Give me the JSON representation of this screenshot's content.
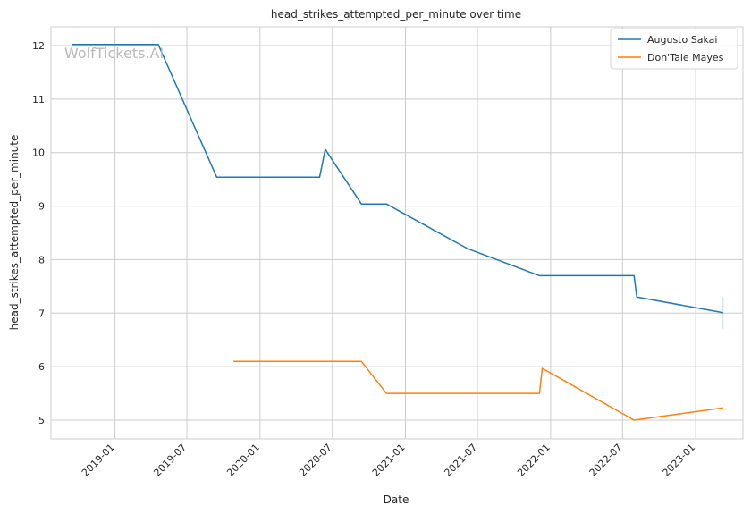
{
  "chart_data": {
    "type": "line",
    "title": "head_strikes_attempted_per_minute over time",
    "xlabel": "Date",
    "ylabel": "head_strikes_attempted_per_minute",
    "watermark": "WolfTickets.AI",
    "x_ticks": [
      "2019-01",
      "2019-07",
      "2020-01",
      "2020-07",
      "2021-01",
      "2021-07",
      "2022-01",
      "2022-07",
      "2023-01"
    ],
    "y_ticks": [
      5,
      6,
      7,
      8,
      9,
      10,
      11,
      12
    ],
    "xlim": [
      "2018-07-24",
      "2023-04-30"
    ],
    "ylim": [
      4.65,
      12.35
    ],
    "grid": true,
    "legend_position": "top-right",
    "series": [
      {
        "name": "Augusto Sakai",
        "color": "#1f77b4",
        "points": [
          [
            "2018-09-15",
            12.02
          ],
          [
            "2019-04-20",
            12.02
          ],
          [
            "2019-09-14",
            9.54
          ],
          [
            "2020-05-30",
            9.54
          ],
          [
            "2020-06-13",
            10.06
          ],
          [
            "2020-09-12",
            9.04
          ],
          [
            "2020-11-14",
            9.04
          ],
          [
            "2021-06-05",
            8.21
          ],
          [
            "2021-12-04",
            7.7
          ],
          [
            "2022-07-30",
            7.7
          ],
          [
            "2022-08-06",
            7.3
          ],
          [
            "2023-03-11",
            7.01
          ]
        ]
      },
      {
        "name": "Don'Tale Mayes",
        "color": "#ff7f0e",
        "points": [
          [
            "2019-10-26",
            6.1
          ],
          [
            "2020-09-12",
            6.1
          ],
          [
            "2020-11-14",
            5.5
          ],
          [
            "2021-12-04",
            5.5
          ],
          [
            "2021-12-11",
            5.97
          ],
          [
            "2022-07-30",
            5.0
          ],
          [
            "2023-03-11",
            5.23
          ]
        ]
      }
    ]
  }
}
